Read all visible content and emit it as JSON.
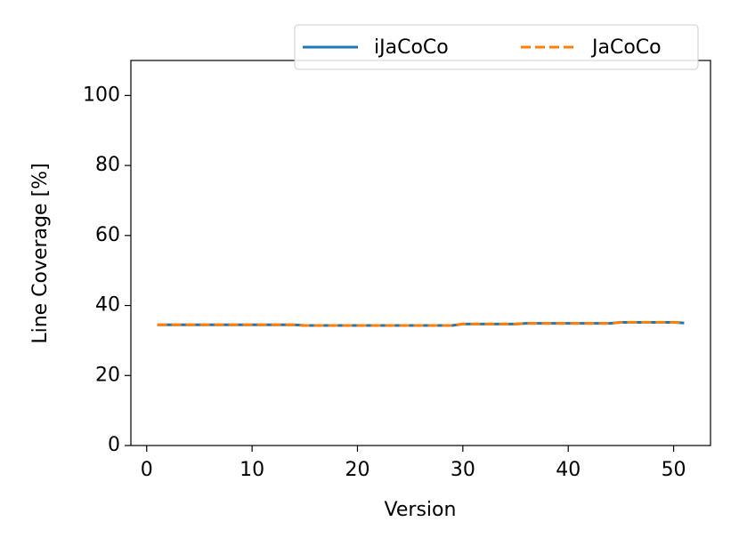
{
  "chart_data": {
    "type": "line",
    "x_label": "Version",
    "y_label": "Line Coverage [%]",
    "x": [
      1,
      2,
      3,
      4,
      5,
      6,
      7,
      8,
      9,
      10,
      11,
      12,
      13,
      14,
      15,
      16,
      17,
      18,
      19,
      20,
      21,
      22,
      23,
      24,
      25,
      26,
      27,
      28,
      29,
      30,
      31,
      32,
      33,
      34,
      35,
      36,
      37,
      38,
      39,
      40,
      41,
      42,
      43,
      44,
      45,
      46,
      47,
      48,
      49,
      50,
      51
    ],
    "series": [
      {
        "name": "iJaCoCo",
        "color": "#1f77b4",
        "dash": "solid",
        "values": [
          34.5,
          34.5,
          34.5,
          34.5,
          34.5,
          34.5,
          34.5,
          34.5,
          34.5,
          34.5,
          34.5,
          34.5,
          34.5,
          34.5,
          34.3,
          34.3,
          34.3,
          34.3,
          34.3,
          34.3,
          34.3,
          34.3,
          34.3,
          34.3,
          34.3,
          34.3,
          34.3,
          34.3,
          34.3,
          34.7,
          34.7,
          34.7,
          34.7,
          34.7,
          34.7,
          34.9,
          34.9,
          34.9,
          34.9,
          34.9,
          34.9,
          34.9,
          34.9,
          34.9,
          35.2,
          35.2,
          35.2,
          35.2,
          35.2,
          35.2,
          35.0
        ]
      },
      {
        "name": "JaCoCo",
        "color": "#ff7f0e",
        "dash": "dashed",
        "values": [
          34.5,
          34.5,
          34.5,
          34.5,
          34.5,
          34.5,
          34.5,
          34.5,
          34.5,
          34.5,
          34.5,
          34.5,
          34.5,
          34.5,
          34.3,
          34.3,
          34.3,
          34.3,
          34.3,
          34.3,
          34.3,
          34.3,
          34.3,
          34.3,
          34.3,
          34.3,
          34.3,
          34.3,
          34.3,
          34.7,
          34.7,
          34.7,
          34.7,
          34.7,
          34.7,
          34.9,
          34.9,
          34.9,
          34.9,
          34.9,
          34.9,
          34.9,
          34.9,
          34.9,
          35.2,
          35.2,
          35.2,
          35.2,
          35.2,
          35.2,
          35.0
        ]
      }
    ],
    "xlim": [
      -1.5,
      53.5
    ],
    "xticks": [
      0,
      10,
      20,
      30,
      40,
      50
    ],
    "ylim": [
      0,
      110
    ],
    "yticks": [
      0,
      20,
      40,
      60,
      80,
      100
    ],
    "grid": false,
    "legend": "upper right"
  }
}
